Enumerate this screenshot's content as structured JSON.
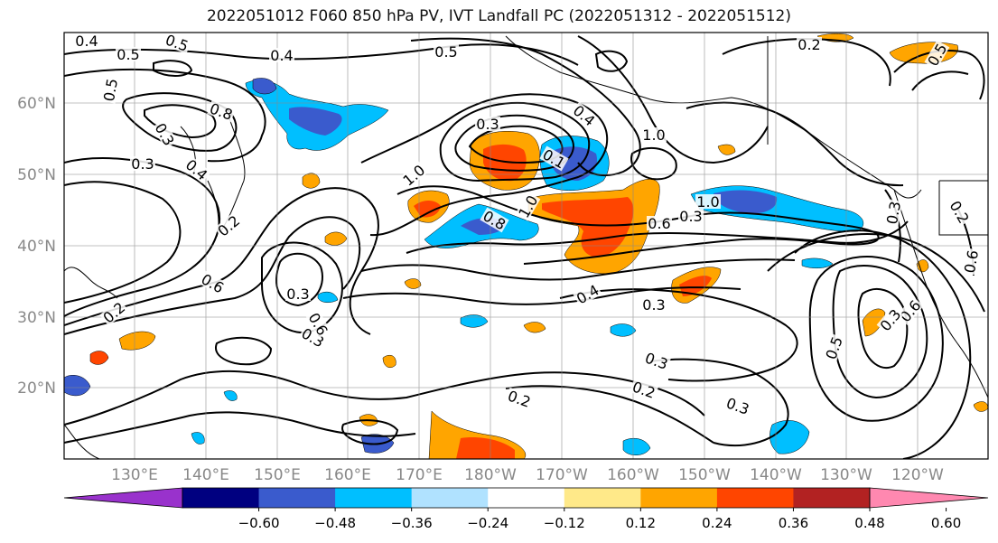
{
  "title": "2022051012 F060 850 hPa PV, IVT Landfall PC (2022051312 - 2022051512)",
  "lat_labels": [
    "60°N",
    "50°N",
    "40°N",
    "30°N",
    "20°N"
  ],
  "lon_labels": [
    "130°E",
    "140°E",
    "150°E",
    "160°E",
    "170°E",
    "180°W",
    "170°W",
    "160°W",
    "150°W",
    "140°W",
    "130°W",
    "120°W"
  ],
  "colorbar": {
    "colors": [
      "#9932cc",
      "#000080",
      "#3a5bcd",
      "#00bfff",
      "#b0e2ff",
      "#ffffff",
      "#ffe989",
      "#ffa500",
      "#ff4500",
      "#b22222",
      "#ff88b0"
    ],
    "tick_labels": [
      "−0.60",
      "−0.48",
      "−0.36",
      "−0.24",
      "−0.12",
      "0.12",
      "0.24",
      "0.36",
      "0.48",
      "0.60"
    ]
  },
  "contour_labels": [
    "0.4",
    "0.5",
    "0.5",
    "0.4",
    "0.5",
    "0.2",
    "0.5",
    "0.8",
    "0.3",
    "0.2",
    "0.3",
    "0.4",
    "0.5",
    "0.3",
    "1.0",
    "0.1",
    "0.4",
    "1.0",
    "0.8",
    "1.0",
    "0.6",
    "0.3",
    "1.0",
    "0.3",
    "0.2",
    "0.6",
    "0.3",
    "0.6",
    "0.4",
    "0.3",
    "0.3",
    "0.2",
    "0.3",
    "0.2",
    "0.5",
    "0.6",
    "0.3",
    "0.6",
    "0.2",
    "0.3"
  ]
}
